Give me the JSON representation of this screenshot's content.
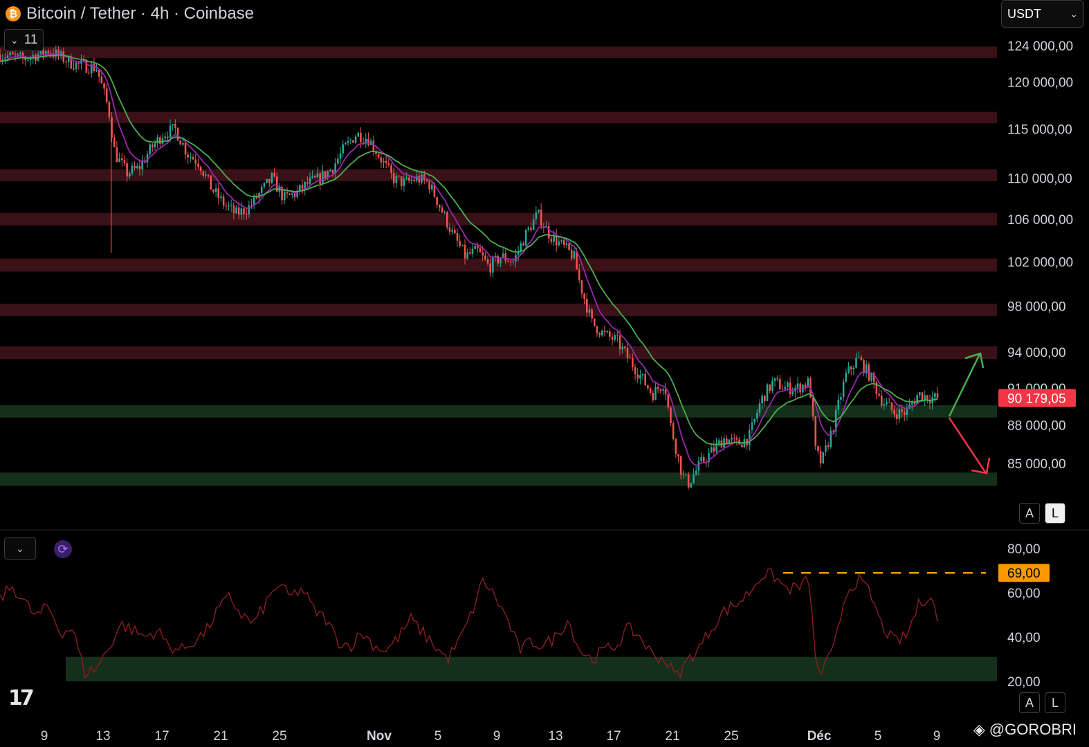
{
  "header": {
    "symbol_icon": "bitcoin-icon",
    "title": "Bitcoin / Tether · 4h · Coinbase",
    "indicator_count": "11"
  },
  "currency_selector": {
    "value": "USDT"
  },
  "scale_buttons": {
    "auto": "A",
    "log": "L"
  },
  "watermark": {
    "text": "@GOROBRI",
    "icon": "binance-diamond-icon"
  },
  "logo": {
    "text": "17",
    "name": "tradingview-logo"
  },
  "colors": {
    "background": "#000000",
    "resistance_zone": "#3a1116",
    "support_zone": "#14301a",
    "candle_up": "#26a69a",
    "candle_down": "#ef5350",
    "ema_fast": "#9c27b0",
    "ema_slow": "#4caf50",
    "rsi_line": "#8b1e24",
    "rsi_level": "#ff9800",
    "price_badge": "#f23645",
    "arrow_up": "#4caf50",
    "arrow_down": "#f23645"
  },
  "chart_data": [
    {
      "type": "candlestick",
      "title": "Bitcoin / Tether · 4h · Coinbase",
      "x_tick_labels": [
        "9",
        "13",
        "17",
        "21",
        "25",
        "Nov",
        "5",
        "9",
        "13",
        "17",
        "21",
        "25",
        "Déc",
        "5",
        "9"
      ],
      "y_tick_labels": [
        "124 000,00",
        "120 000,00",
        "115 000,00",
        "110 000,00",
        "106 000,00",
        "102 000,00",
        "98 000,00",
        "94 000,00",
        "91 000,00",
        "88 000,00",
        "85 000,00"
      ],
      "y_ticks": [
        124000,
        120000,
        115000,
        110000,
        106000,
        102000,
        98000,
        94000,
        91000,
        88000,
        85000
      ],
      "y_scale": "log",
      "last_price": 90179.05,
      "last_price_label": "90 179,05",
      "price_path": [
        [
          0,
          123000
        ],
        [
          2,
          122500
        ],
        [
          4,
          123500
        ],
        [
          6,
          122000
        ],
        [
          8,
          121500
        ],
        [
          9,
          117000
        ],
        [
          9.5,
          112500
        ],
        [
          10.5,
          110500
        ],
        [
          11.5,
          111000
        ],
        [
          12.5,
          113000
        ],
        [
          13.5,
          114500
        ],
        [
          14.5,
          115000
        ],
        [
          15.5,
          112500
        ],
        [
          16.5,
          111500
        ],
        [
          17.5,
          109000
        ],
        [
          18.5,
          107500
        ],
        [
          19.5,
          106500
        ],
        [
          20.5,
          107000
        ],
        [
          21.5,
          108500
        ],
        [
          22.5,
          110000
        ],
        [
          23.5,
          108000
        ],
        [
          24.5,
          108500
        ],
        [
          25.5,
          109500
        ],
        [
          26.5,
          110000
        ],
        [
          27.5,
          111000
        ],
        [
          28.5,
          113000
        ],
        [
          29.5,
          114500
        ],
        [
          30.5,
          114000
        ],
        [
          31.5,
          112000
        ],
        [
          32.5,
          110000
        ],
        [
          33.5,
          109500
        ],
        [
          34.5,
          110000
        ],
        [
          35.5,
          109500
        ],
        [
          36.5,
          107000
        ],
        [
          37.5,
          104500
        ],
        [
          38.5,
          102500
        ],
        [
          39.5,
          103000
        ],
        [
          40.5,
          101500
        ],
        [
          41.5,
          102500
        ],
        [
          42.5,
          102000
        ],
        [
          43.5,
          104500
        ],
        [
          44.5,
          106500
        ],
        [
          45.5,
          104500
        ],
        [
          46.5,
          103500
        ],
        [
          47.5,
          102500
        ],
        [
          48,
          100000
        ],
        [
          49,
          96500
        ],
        [
          50,
          95500
        ],
        [
          51,
          95000
        ],
        [
          52,
          93500
        ],
        [
          53,
          92000
        ],
        [
          54,
          90500
        ],
        [
          55,
          91500
        ],
        [
          55.5,
          88000
        ],
        [
          56.5,
          84000
        ],
        [
          57,
          83500
        ],
        [
          58,
          85000
        ],
        [
          59,
          86000
        ],
        [
          60,
          87000
        ],
        [
          61,
          86500
        ],
        [
          62,
          87000
        ],
        [
          63,
          90000
        ],
        [
          64,
          91500
        ],
        [
          65,
          91000
        ],
        [
          66,
          91000
        ],
        [
          67,
          91500
        ],
        [
          67.5,
          86000
        ],
        [
          68,
          85000
        ],
        [
          69,
          88000
        ],
        [
          70,
          92000
        ],
        [
          71,
          93500
        ],
        [
          72,
          92000
        ],
        [
          73,
          90000
        ],
        [
          74,
          89000
        ],
        [
          75,
          89000
        ],
        [
          76,
          90500
        ],
        [
          77,
          90200
        ],
        [
          77.6,
          90179
        ]
      ],
      "resistance_zones": [
        [
          122600,
          123900
        ],
        [
          115600,
          116800
        ],
        [
          109700,
          110900
        ],
        [
          105400,
          106600
        ],
        [
          101100,
          102300
        ],
        [
          97100,
          98200
        ],
        [
          93400,
          94500
        ]
      ],
      "support_zones": [
        [
          88600,
          89600
        ],
        [
          83300,
          84300
        ]
      ],
      "annotations": [
        "green-up-arrow",
        "red-down-arrow"
      ]
    },
    {
      "type": "line",
      "title": "",
      "y_tick_labels": [
        "80,00",
        "60,00",
        "40,00",
        "20,00"
      ],
      "y_ticks": [
        80,
        60,
        40,
        20
      ],
      "ylim": [
        17,
        85
      ],
      "level_value": 69,
      "level_label": "69,00",
      "zone": [
        20,
        31
      ],
      "path": [
        [
          0,
          57
        ],
        [
          1,
          63
        ],
        [
          2,
          56
        ],
        [
          3,
          49
        ],
        [
          4,
          54
        ],
        [
          5,
          42
        ],
        [
          6,
          44
        ],
        [
          7,
          24
        ],
        [
          8,
          26
        ],
        [
          9,
          35
        ],
        [
          10,
          46
        ],
        [
          11,
          43
        ],
        [
          12,
          40
        ],
        [
          13,
          43
        ],
        [
          14,
          36
        ],
        [
          15,
          34
        ],
        [
          16,
          38
        ],
        [
          17,
          42
        ],
        [
          18,
          52
        ],
        [
          19,
          58
        ],
        [
          20,
          50
        ],
        [
          21,
          46
        ],
        [
          22,
          55
        ],
        [
          23,
          64
        ],
        [
          24,
          58
        ],
        [
          25,
          62
        ],
        [
          26,
          52
        ],
        [
          27,
          48
        ],
        [
          28,
          38
        ],
        [
          29,
          36
        ],
        [
          30,
          42
        ],
        [
          31,
          36
        ],
        [
          32,
          34
        ],
        [
          33,
          40
        ],
        [
          34,
          48
        ],
        [
          35,
          42
        ],
        [
          36,
          36
        ],
        [
          37,
          30
        ],
        [
          38,
          38
        ],
        [
          39,
          50
        ],
        [
          40,
          66
        ],
        [
          41,
          58
        ],
        [
          42,
          48
        ],
        [
          43,
          34
        ],
        [
          44,
          38
        ],
        [
          45,
          36
        ],
        [
          46,
          40
        ],
        [
          47,
          48
        ],
        [
          48,
          34
        ],
        [
          49,
          30
        ],
        [
          50,
          34
        ],
        [
          51,
          36
        ],
        [
          52,
          44
        ],
        [
          53,
          40
        ],
        [
          54,
          32
        ],
        [
          55,
          30
        ],
        [
          56,
          22
        ],
        [
          57,
          30
        ],
        [
          58,
          36
        ],
        [
          59,
          45
        ],
        [
          60,
          52
        ],
        [
          61,
          55
        ],
        [
          62,
          60
        ],
        [
          63,
          68
        ],
        [
          64,
          68
        ],
        [
          65,
          62
        ],
        [
          66,
          62
        ],
        [
          67,
          66
        ],
        [
          67.5,
          28
        ],
        [
          68,
          24
        ],
        [
          69,
          34
        ],
        [
          70,
          60
        ],
        [
          71,
          66
        ],
        [
          72,
          60
        ],
        [
          73,
          45
        ],
        [
          74,
          38
        ],
        [
          75,
          40
        ],
        [
          76,
          54
        ],
        [
          77,
          60
        ],
        [
          77.6,
          48
        ]
      ]
    }
  ]
}
